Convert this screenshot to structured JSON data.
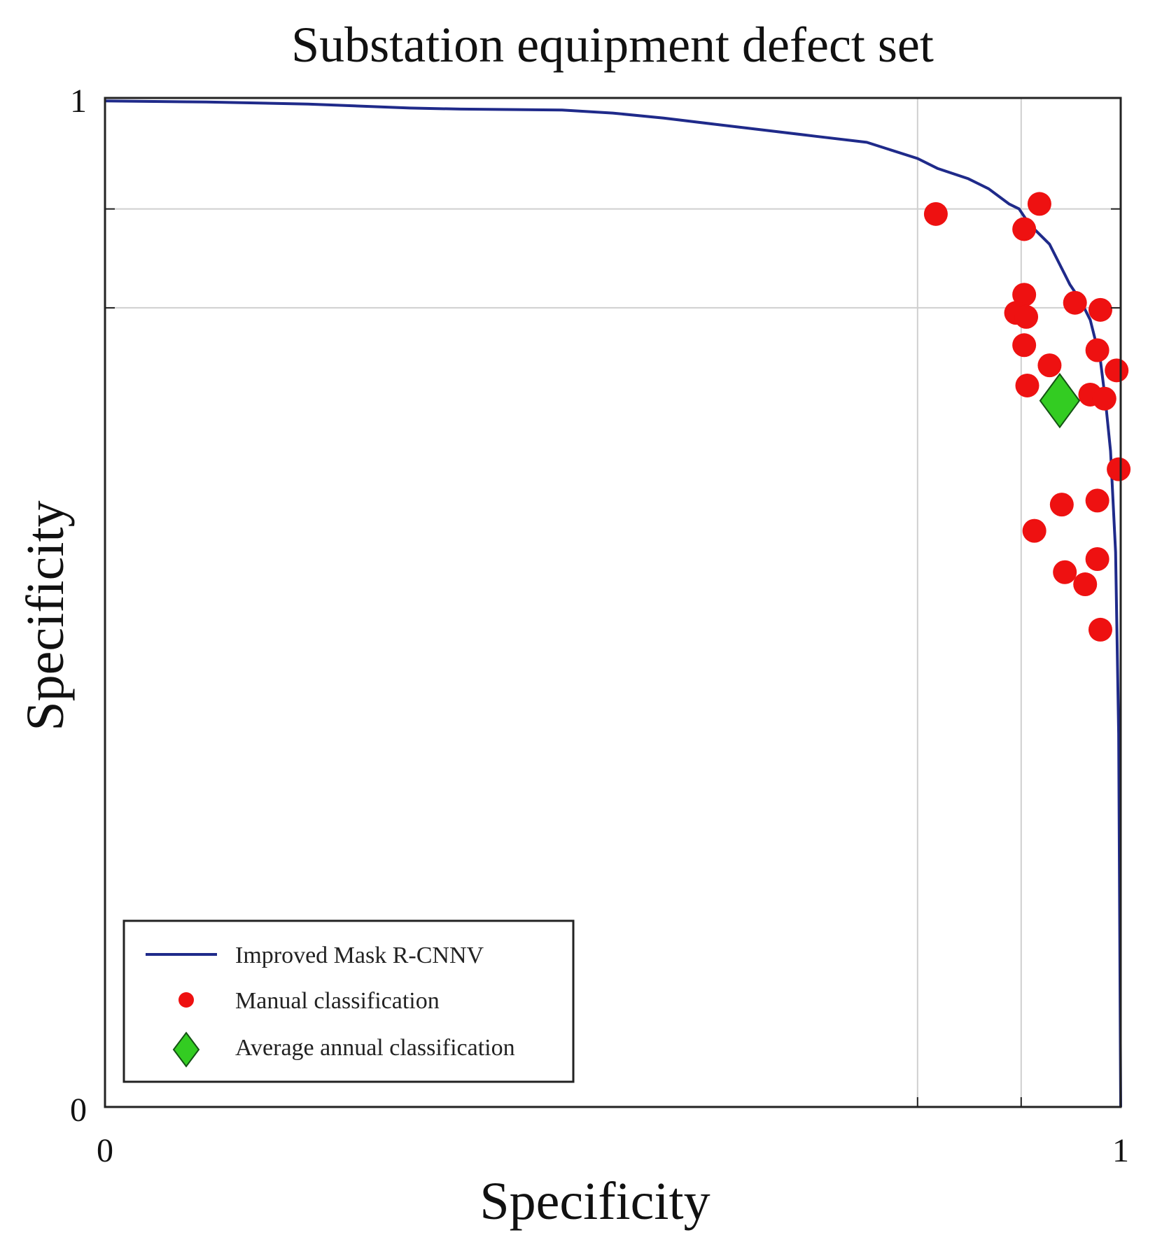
{
  "chart_data": {
    "type": "scatter",
    "title": "Substation equipment defect set",
    "xlabel": "Specificity",
    "ylabel": "Specificity",
    "xlim": [
      0,
      1
    ],
    "ylim": [
      0,
      1
    ],
    "x_ticks": [
      {
        "value": 0,
        "label": "0"
      },
      {
        "value": 1,
        "label": "1"
      }
    ],
    "y_ticks": [
      {
        "value": 0,
        "label": "0"
      },
      {
        "value": 1,
        "label": "1"
      }
    ],
    "x_gridlines": [
      0.8,
      0.902
    ],
    "y_gridlines": [
      0.89,
      0.792
    ],
    "legend_position": "bottom-left",
    "colors": {
      "curve": "#1f2a8a",
      "manual": "#ee1111",
      "average_fill": "#33cc22",
      "average_edge": "#145214",
      "grid": "#cfcfcf",
      "frame": "#222222"
    },
    "series": [
      {
        "name": "Improved Mask R-CNNV",
        "kind": "line",
        "x": [
          0.0,
          0.1,
          0.2,
          0.3,
          0.35,
          0.45,
          0.5,
          0.55,
          0.6,
          0.65,
          0.7,
          0.75,
          0.8,
          0.82,
          0.85,
          0.87,
          0.89,
          0.9,
          0.91,
          0.93,
          0.94,
          0.95,
          0.96,
          0.97,
          0.98,
          0.985,
          0.99,
          0.995,
          0.998,
          1.0
        ],
        "y": [
          0.997,
          0.996,
          0.994,
          0.99,
          0.989,
          0.988,
          0.985,
          0.98,
          0.974,
          0.968,
          0.962,
          0.956,
          0.94,
          0.93,
          0.92,
          0.91,
          0.895,
          0.89,
          0.875,
          0.855,
          0.835,
          0.815,
          0.8,
          0.78,
          0.74,
          0.7,
          0.65,
          0.55,
          0.37,
          0.0
        ]
      },
      {
        "name": "Manual classification",
        "kind": "scatter",
        "points": [
          [
            0.818,
            0.885
          ],
          [
            0.92,
            0.895
          ],
          [
            0.905,
            0.87
          ],
          [
            0.905,
            0.805
          ],
          [
            0.897,
            0.787
          ],
          [
            0.907,
            0.783
          ],
          [
            0.955,
            0.797
          ],
          [
            0.98,
            0.79
          ],
          [
            0.905,
            0.755
          ],
          [
            0.93,
            0.735
          ],
          [
            0.977,
            0.75
          ],
          [
            0.908,
            0.715
          ],
          [
            0.97,
            0.706
          ],
          [
            0.984,
            0.702
          ],
          [
            0.996,
            0.73
          ],
          [
            0.998,
            0.632
          ],
          [
            0.942,
            0.597
          ],
          [
            0.977,
            0.601
          ],
          [
            0.915,
            0.571
          ],
          [
            0.977,
            0.543
          ],
          [
            0.945,
            0.53
          ],
          [
            0.965,
            0.518
          ],
          [
            0.98,
            0.473
          ]
        ]
      },
      {
        "name": "Average annual classification",
        "kind": "marker",
        "points": [
          [
            0.94,
            0.7
          ]
        ]
      }
    ]
  }
}
